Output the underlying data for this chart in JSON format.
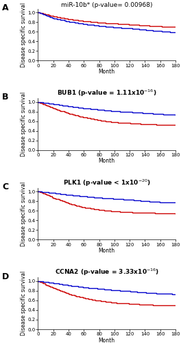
{
  "panels": [
    {
      "label": "A",
      "title": "miR-10b* (p-value= 0.00968)",
      "title_bold": false,
      "title_fontsize": 6.5,
      "red_pts": [
        [
          0,
          1.0
        ],
        [
          20,
          0.92
        ],
        [
          40,
          0.86
        ],
        [
          60,
          0.82
        ],
        [
          80,
          0.79
        ],
        [
          100,
          0.77
        ],
        [
          120,
          0.75
        ],
        [
          140,
          0.73
        ],
        [
          160,
          0.71
        ],
        [
          180,
          0.7
        ]
      ],
      "blue_pts": [
        [
          0,
          1.0
        ],
        [
          20,
          0.88
        ],
        [
          40,
          0.81
        ],
        [
          60,
          0.76
        ],
        [
          80,
          0.72
        ],
        [
          100,
          0.69
        ],
        [
          120,
          0.67
        ],
        [
          140,
          0.64
        ],
        [
          160,
          0.61
        ],
        [
          180,
          0.585
        ]
      ]
    },
    {
      "label": "B",
      "title": "BUB1 (p-value = 1.11x10$^{-16}$)",
      "title_bold": true,
      "title_fontsize": 6.5,
      "red_pts": [
        [
          0,
          1.0
        ],
        [
          20,
          0.87
        ],
        [
          40,
          0.76
        ],
        [
          60,
          0.68
        ],
        [
          80,
          0.62
        ],
        [
          100,
          0.58
        ],
        [
          120,
          0.56
        ],
        [
          140,
          0.54
        ],
        [
          160,
          0.53
        ],
        [
          180,
          0.52
        ]
      ],
      "blue_pts": [
        [
          0,
          1.0
        ],
        [
          20,
          0.96
        ],
        [
          40,
          0.91
        ],
        [
          60,
          0.87
        ],
        [
          80,
          0.84
        ],
        [
          100,
          0.81
        ],
        [
          120,
          0.79
        ],
        [
          140,
          0.77
        ],
        [
          160,
          0.75
        ],
        [
          180,
          0.73
        ]
      ]
    },
    {
      "label": "C",
      "title": "PLK1 (p-value < 1x10$^{-20}$)",
      "title_bold": true,
      "title_fontsize": 6.5,
      "red_pts": [
        [
          0,
          1.0
        ],
        [
          20,
          0.87
        ],
        [
          40,
          0.75
        ],
        [
          60,
          0.67
        ],
        [
          80,
          0.62
        ],
        [
          100,
          0.59
        ],
        [
          120,
          0.57
        ],
        [
          140,
          0.56
        ],
        [
          160,
          0.55
        ],
        [
          180,
          0.54
        ]
      ],
      "blue_pts": [
        [
          0,
          1.0
        ],
        [
          20,
          0.97
        ],
        [
          40,
          0.93
        ],
        [
          60,
          0.9
        ],
        [
          80,
          0.87
        ],
        [
          100,
          0.85
        ],
        [
          120,
          0.83
        ],
        [
          140,
          0.8
        ],
        [
          160,
          0.78
        ],
        [
          180,
          0.77
        ]
      ]
    },
    {
      "label": "D",
      "title": "CCNA2 (p-value = 3.33x10$^{-16}$)",
      "title_bold": true,
      "title_fontsize": 6.5,
      "red_pts": [
        [
          0,
          1.0
        ],
        [
          20,
          0.85
        ],
        [
          40,
          0.73
        ],
        [
          60,
          0.65
        ],
        [
          80,
          0.59
        ],
        [
          100,
          0.55
        ],
        [
          120,
          0.53
        ],
        [
          140,
          0.51
        ],
        [
          160,
          0.5
        ],
        [
          180,
          0.5
        ]
      ],
      "blue_pts": [
        [
          0,
          1.0
        ],
        [
          20,
          0.96
        ],
        [
          40,
          0.91
        ],
        [
          60,
          0.87
        ],
        [
          80,
          0.84
        ],
        [
          100,
          0.81
        ],
        [
          120,
          0.79
        ],
        [
          140,
          0.76
        ],
        [
          160,
          0.74
        ],
        [
          180,
          0.73
        ]
      ]
    }
  ],
  "xmax": 180,
  "xticks": [
    0,
    20,
    40,
    60,
    80,
    100,
    120,
    140,
    160,
    180
  ],
  "yticks": [
    0,
    0.2,
    0.4,
    0.6,
    0.8,
    1.0
  ],
  "xlabel": "Month",
  "ylabel": "Disease specific survival",
  "red_color": "#cc0000",
  "blue_color": "#0000cc",
  "linewidth": 1.0,
  "bg_color": "#ffffff",
  "tick_fontsize": 5.0,
  "label_fontsize": 5.5,
  "panel_label_fontsize": 9
}
